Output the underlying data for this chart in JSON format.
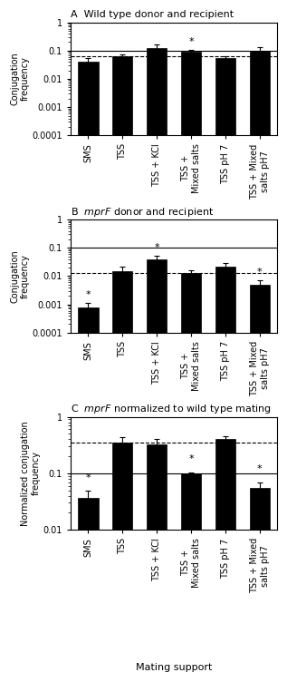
{
  "panels": [
    {
      "label": "A",
      "title": "Wild type donor and recipient",
      "title_italic": false,
      "ylabel": "Conjugation\nfrequency",
      "ylim": [
        0.0001,
        1
      ],
      "yticks": [
        0.0001,
        0.001,
        0.01,
        0.1,
        1
      ],
      "yticklabels": [
        "0.0001",
        "0.001",
        "0.01",
        "0.1",
        "1"
      ],
      "solid_hline": 0.1,
      "dashed_hline": 0.065,
      "bars": [
        0.04,
        0.065,
        0.12,
        0.09,
        0.055,
        0.1
      ],
      "errors": [
        0.015,
        0.01,
        0.04,
        0.015,
        0.01,
        0.03
      ],
      "stars": [
        false,
        false,
        false,
        true,
        false,
        false
      ]
    },
    {
      "label": "B",
      "title": "mprF donor and recipient",
      "title_italic": true,
      "ylabel": "Conjugation\nfrequency",
      "ylim": [
        0.0001,
        1
      ],
      "yticks": [
        0.0001,
        0.001,
        0.01,
        0.1,
        1
      ],
      "yticklabels": [
        "0.0001",
        "0.001",
        "0.01",
        "0.1",
        "1"
      ],
      "solid_hline": 0.1,
      "dashed_hline": 0.013,
      "bars": [
        0.0008,
        0.015,
        0.04,
        0.013,
        0.022,
        0.005
      ],
      "errors": [
        0.0003,
        0.006,
        0.012,
        0.003,
        0.007,
        0.002
      ],
      "stars": [
        true,
        false,
        true,
        false,
        false,
        true
      ]
    },
    {
      "label": "C",
      "title": "mprF normalized to wild type mating",
      "title_italic": true,
      "ylabel": "Normalized conjugation\nfrequency",
      "ylim": [
        0.01,
        1
      ],
      "yticks": [
        0.01,
        0.1,
        1
      ],
      "yticklabels": [
        "0.01",
        "0.1",
        "1"
      ],
      "solid_hline": 0.1,
      "dashed_hline": 0.35,
      "bars": [
        0.037,
        0.35,
        0.33,
        0.1,
        0.4,
        0.055
      ],
      "errors": [
        0.013,
        0.08,
        0.07,
        0.005,
        0.06,
        0.015
      ],
      "stars": [
        true,
        false,
        false,
        true,
        false,
        true
      ]
    }
  ],
  "categories": [
    "SMS",
    "TSS",
    "TSS + KCl",
    "TSS +\nMixed salts",
    "TSS pH 7",
    "TSS + Mixed\nsalts pH7"
  ],
  "bar_color": "#000000",
  "error_color": "#000000",
  "xlabel": "Mating support"
}
